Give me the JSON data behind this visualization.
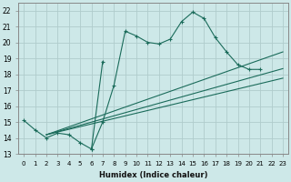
{
  "xlabel": "Humidex (Indice chaleur)",
  "background_color": "#cde8e8",
  "grid_color": "#b0cccc",
  "line_color": "#1a6b5a",
  "xlim": [
    -0.5,
    23.5
  ],
  "ylim": [
    13.0,
    22.5
  ],
  "xticks": [
    0,
    1,
    2,
    3,
    4,
    5,
    6,
    7,
    8,
    9,
    10,
    11,
    12,
    13,
    14,
    15,
    16,
    17,
    18,
    19,
    20,
    21,
    22,
    23
  ],
  "yticks": [
    13,
    14,
    15,
    16,
    17,
    18,
    19,
    20,
    21,
    22
  ],
  "main_line": {
    "x": [
      0,
      1,
      2,
      3,
      4,
      5,
      6,
      7,
      8,
      9,
      10,
      11,
      12,
      13,
      14,
      15,
      16,
      17,
      18,
      19,
      20,
      21,
      22,
      23
    ],
    "y": [
      15.1,
      14.5,
      14.0,
      14.3,
      14.2,
      13.7,
      13.3,
      15.0,
      17.3,
      20.7,
      20.4,
      20.0,
      19.9,
      20.2,
      21.3,
      21.9,
      21.5,
      20.3,
      19.4,
      18.6,
      18.3,
      18.3,
      null,
      null
    ]
  },
  "spike_line": {
    "x": [
      6,
      7
    ],
    "y": [
      13.3,
      18.8
    ]
  },
  "straight_lines": [
    {
      "x": [
        2,
        23
      ],
      "y": [
        14.2,
        19.4
      ]
    },
    {
      "x": [
        2,
        23
      ],
      "y": [
        14.2,
        18.35
      ]
    },
    {
      "x": [
        2,
        23
      ],
      "y": [
        14.2,
        17.75
      ]
    }
  ]
}
